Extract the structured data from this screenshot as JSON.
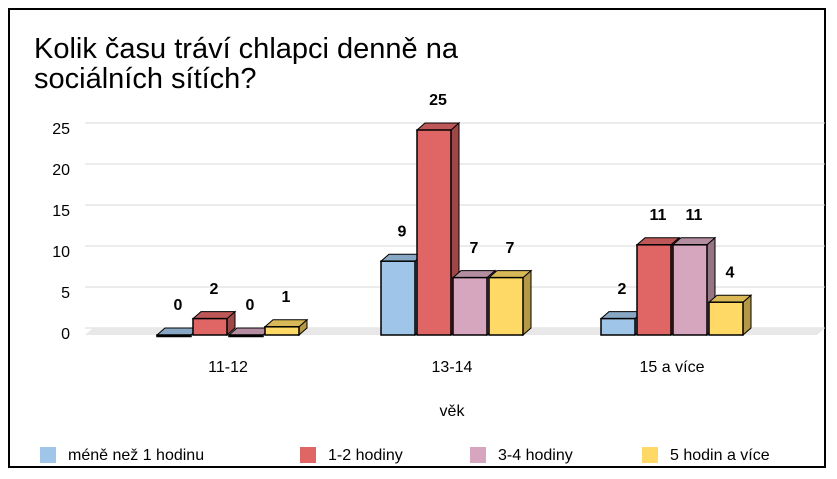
{
  "chart_data": {
    "type": "bar",
    "title": "Kolik času tráví chlapci denně na sociálních sítích?",
    "x_label": "věk",
    "categories": [
      "11-12",
      "13-14",
      "15 a více"
    ],
    "series": [
      {
        "name": "méně než 1 hodinu",
        "color": "#9fc5e8",
        "values": [
          0,
          9,
          2
        ]
      },
      {
        "name": "1-2 hodiny",
        "color": "#e06666",
        "values": [
          2,
          25,
          11
        ]
      },
      {
        "name": "3-4 hodiny",
        "color": "#d5a6bd",
        "values": [
          0,
          7,
          11
        ]
      },
      {
        "name": "5 hodin a více",
        "color": "#ffd966",
        "values": [
          1,
          7,
          4
        ]
      }
    ],
    "ylim": [
      0,
      25
    ],
    "yticks": [
      0,
      5,
      10,
      15,
      20,
      25
    ],
    "grid": true,
    "legend": "bottom"
  }
}
